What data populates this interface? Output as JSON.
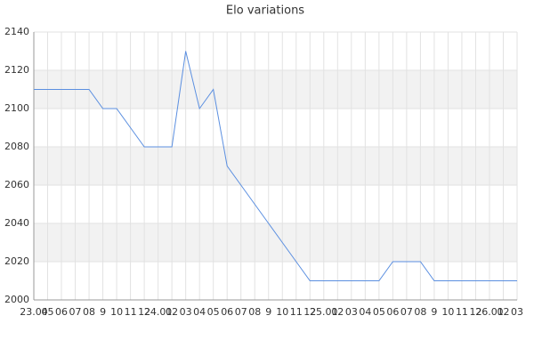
{
  "chart_data": {
    "type": "line",
    "title": "Elo variations",
    "categories": [
      "23.04",
      "05",
      "06",
      "07",
      "08",
      "9",
      "10",
      "11",
      "12",
      "24.01",
      "02",
      "03",
      "04",
      "05",
      "06",
      "07",
      "08",
      "9",
      "10",
      "11",
      "12",
      "25.01",
      "02",
      "03",
      "04",
      "05",
      "06",
      "07",
      "08",
      "9",
      "10",
      "11",
      "12",
      "26.01",
      "02",
      "03"
    ],
    "series": [
      {
        "name": "Elo",
        "color": "#5b8fe0",
        "values": [
          2110,
          2110,
          2110,
          2110,
          2110,
          2100,
          2100,
          2090,
          2080,
          2080,
          2080,
          2130,
          2100,
          2110,
          2070,
          2060,
          2050,
          2040,
          2030,
          2020,
          2010,
          2010,
          2010,
          2010,
          2010,
          2010,
          2020,
          2020,
          2020,
          2010,
          2010,
          2010,
          2010,
          2010,
          2010,
          2010
        ]
      }
    ],
    "ylim": [
      2000,
      2140
    ],
    "yticks": [
      2000,
      2020,
      2040,
      2060,
      2080,
      2100,
      2120,
      2140
    ],
    "grid": true
  }
}
